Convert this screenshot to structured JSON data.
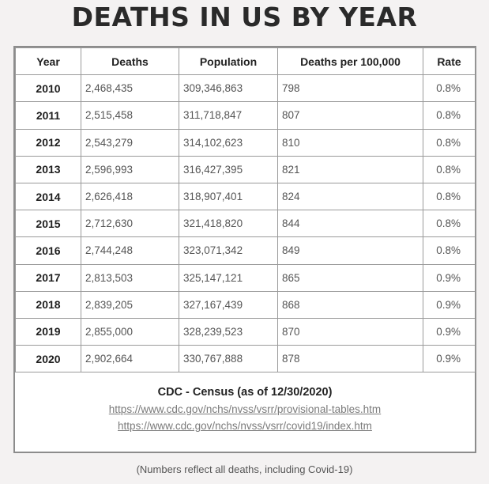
{
  "title": "DEATHS IN US BY YEAR",
  "table": {
    "headers": [
      "Year",
      "Deaths",
      "Population",
      "Deaths per 100,000",
      "Rate"
    ],
    "rows": [
      [
        "2010",
        "2,468,435",
        "309,346,863",
        "798",
        "0.8%"
      ],
      [
        "2011",
        "2,515,458",
        "311,718,847",
        "807",
        "0.8%"
      ],
      [
        "2012",
        "2,543,279",
        "314,102,623",
        "810",
        "0.8%"
      ],
      [
        "2013",
        "2,596,993",
        "316,427,395",
        "821",
        "0.8%"
      ],
      [
        "2014",
        "2,626,418",
        "318,907,401",
        "824",
        "0.8%"
      ],
      [
        "2015",
        "2,712,630",
        "321,418,820",
        "844",
        "0.8%"
      ],
      [
        "2016",
        "2,744,248",
        "323,071,342",
        "849",
        "0.8%"
      ],
      [
        "2017",
        "2,813,503",
        "325,147,121",
        "865",
        "0.9%"
      ],
      [
        "2018",
        "2,839,205",
        "327,167,439",
        "868",
        "0.9%"
      ],
      [
        "2019",
        "2,855,000",
        "328,239,523",
        "870",
        "0.9%"
      ],
      [
        "2020",
        "2,902,664",
        "330,767,888",
        "878",
        "0.9%"
      ]
    ]
  },
  "source": {
    "title": "CDC - Census (as of 12/30/2020)",
    "links": [
      "https://www.cdc.gov/nchs/nvss/vsrr/provisional-tables.htm",
      "https://www.cdc.gov/nchs/nvss/vsrr/covid19/index.htm"
    ]
  },
  "note": "(Numbers reflect all deaths, including Covid-19)"
}
